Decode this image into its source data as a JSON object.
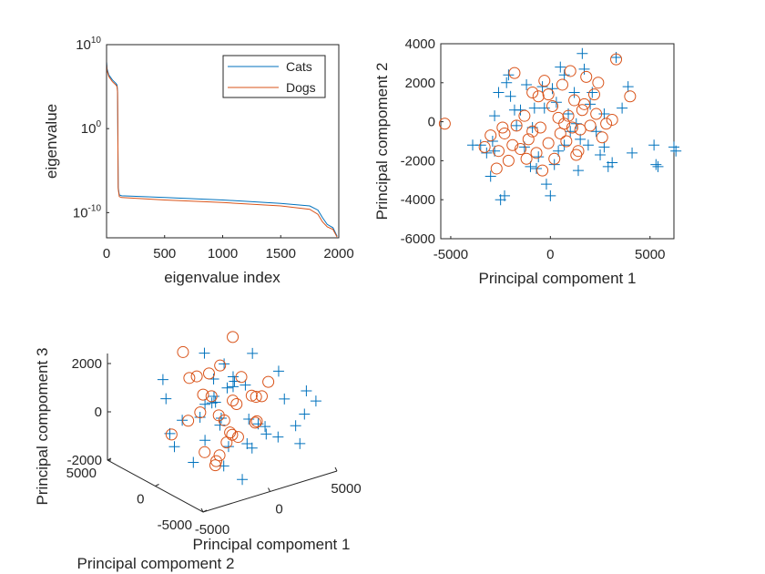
{
  "colors": {
    "cats": "#0072BD",
    "dogs": "#D95319",
    "axis": "#262626",
    "background": "#ffffff"
  },
  "legend": {
    "entries": [
      "Cats",
      "Dogs"
    ],
    "placement": "top-right"
  },
  "chart_data": [
    {
      "type": "line",
      "xlabel": "eigenvalue index",
      "ylabel": "eigenvalue",
      "xlim": [
        0,
        2000
      ],
      "ylim_log10": [
        -13,
        10
      ],
      "yscale": "log",
      "grid": false,
      "x_ticks": [
        "0",
        "500",
        "1000",
        "1500",
        "2000"
      ],
      "y_ticks": [
        {
          "base": "10",
          "exp": "10"
        },
        {
          "base": "10",
          "exp": "0"
        },
        {
          "base": "10",
          "exp": "-10"
        }
      ],
      "series": [
        {
          "name": "Cats",
          "x": [
            1,
            5,
            20,
            50,
            80,
            90,
            95,
            100,
            110,
            130,
            500,
            1000,
            1500,
            1750,
            1820,
            1860,
            1900,
            1950,
            1985
          ],
          "log10_y": [
            7.9,
            7.1,
            6.4,
            5.8,
            5.4,
            5.2,
            4.5,
            -7.0,
            -7.9,
            -8.0,
            -8.2,
            -8.5,
            -8.9,
            -9.2,
            -9.7,
            -10.6,
            -11.4,
            -11.8,
            -12.8
          ]
        },
        {
          "name": "Dogs",
          "x": [
            1,
            5,
            20,
            50,
            80,
            90,
            95,
            100,
            110,
            130,
            500,
            1000,
            1500,
            1750,
            1820,
            1860,
            1900,
            1950,
            1985
          ],
          "log10_y": [
            7.6,
            6.9,
            6.2,
            5.6,
            5.2,
            5.0,
            4.3,
            -7.2,
            -8.1,
            -8.2,
            -8.5,
            -8.8,
            -9.2,
            -9.6,
            -10.2,
            -11.1,
            -11.7,
            -12.0,
            -12.9
          ]
        }
      ]
    },
    {
      "type": "scatter",
      "xlabel": "Principal compoment 1",
      "ylabel": "Principal compoment 2",
      "xlim": [
        -5500,
        6200
      ],
      "ylim": [
        -6000,
        4000
      ],
      "x_ticks": [
        "-5000",
        "0",
        "5000"
      ],
      "y_ticks": [
        "4000",
        "2000",
        "0",
        "-2000",
        "-4000",
        "-6000"
      ],
      "series": [
        {
          "name": "Cats",
          "marker": "+",
          "points": [
            [
              -3500,
              -1200
            ],
            [
              -3200,
              -1600
            ],
            [
              -3000,
              -2800
            ],
            [
              -2900,
              -1000
            ],
            [
              -2500,
              -4000
            ],
            [
              -2300,
              -3800
            ],
            [
              -2800,
              300
            ],
            [
              -2600,
              1500
            ],
            [
              -2200,
              2000
            ],
            [
              -2000,
              1300
            ],
            [
              -1700,
              -200
            ],
            [
              -1500,
              600
            ],
            [
              -1300,
              -1300
            ],
            [
              -1000,
              -2300
            ],
            [
              -800,
              700
            ],
            [
              -600,
              -1800
            ],
            [
              -400,
              1800
            ],
            [
              -200,
              -3200
            ],
            [
              0,
              -3800
            ],
            [
              200,
              -2200
            ],
            [
              300,
              1000
            ],
            [
              500,
              2800
            ],
            [
              700,
              -1200
            ],
            [
              900,
              400
            ],
            [
              1000,
              -500
            ],
            [
              1200,
              1500
            ],
            [
              1400,
              -2500
            ],
            [
              1600,
              3500
            ],
            [
              1700,
              2700
            ],
            [
              1900,
              -1200
            ],
            [
              2100,
              1500
            ],
            [
              2300,
              -500
            ],
            [
              2500,
              -1700
            ],
            [
              2700,
              400
            ],
            [
              2900,
              -2300
            ],
            [
              3100,
              -2100
            ],
            [
              3300,
              3300
            ],
            [
              3600,
              700
            ],
            [
              3900,
              1800
            ],
            [
              4100,
              -1600
            ],
            [
              -3900,
              -1200
            ],
            [
              -2800,
              -1500
            ],
            [
              -1800,
              600
            ],
            [
              -900,
              -300
            ],
            [
              700,
              2400
            ],
            [
              1300,
              -100
            ],
            [
              2000,
              900
            ],
            [
              -300,
              700
            ],
            [
              400,
              -1500
            ],
            [
              1500,
              -900
            ],
            [
              5200,
              -1200
            ],
            [
              5300,
              -2200
            ],
            [
              5400,
              -2300
            ],
            [
              6200,
              -1300
            ],
            [
              6300,
              -1500
            ],
            [
              -2100,
              2400
            ],
            [
              -1200,
              1900
            ],
            [
              -700,
              -2400
            ],
            [
              100,
              1700
            ],
            [
              2700,
              -1300
            ]
          ]
        },
        {
          "name": "Dogs",
          "marker": "o",
          "points": [
            [
              -5300,
              -100
            ],
            [
              -3300,
              -1300
            ],
            [
              -3000,
              -700
            ],
            [
              -2700,
              -2400
            ],
            [
              -2600,
              -1500
            ],
            [
              -2300,
              -600
            ],
            [
              -2100,
              -2000
            ],
            [
              -1900,
              -1200
            ],
            [
              -1700,
              -200
            ],
            [
              -1500,
              -1400
            ],
            [
              -1300,
              300
            ],
            [
              -1100,
              -900
            ],
            [
              -900,
              1500
            ],
            [
              -700,
              -1600
            ],
            [
              -500,
              -300
            ],
            [
              -300,
              2100
            ],
            [
              -100,
              -1100
            ],
            [
              100,
              800
            ],
            [
              200,
              -1900
            ],
            [
              400,
              200
            ],
            [
              600,
              1900
            ],
            [
              800,
              -1000
            ],
            [
              900,
              300
            ],
            [
              1000,
              2600
            ],
            [
              1100,
              -300
            ],
            [
              1200,
              1100
            ],
            [
              1400,
              -1500
            ],
            [
              1500,
              -400
            ],
            [
              1600,
              600
            ],
            [
              1800,
              2300
            ],
            [
              2000,
              -200
            ],
            [
              2200,
              1400
            ],
            [
              2400,
              2000
            ],
            [
              2600,
              -800
            ],
            [
              2800,
              -100
            ],
            [
              3100,
              100
            ],
            [
              3300,
              3200
            ],
            [
              4000,
              1300
            ],
            [
              -1800,
              2500
            ],
            [
              -600,
              1300
            ],
            [
              -2400,
              -300
            ],
            [
              -1200,
              -1900
            ],
            [
              -400,
              -2500
            ],
            [
              500,
              -600
            ],
            [
              1300,
              -1700
            ],
            [
              1700,
              900
            ],
            [
              2300,
              400
            ],
            [
              -100,
              1400
            ],
            [
              700,
              -100
            ],
            [
              -900,
              -500
            ]
          ]
        }
      ]
    },
    {
      "type": "scatter",
      "projection": "3d",
      "xlabel": "Principal compoment 1",
      "ylabel": "Principal compoment 2",
      "zlabel": "Principal compoment 3",
      "xlim": [
        -5000,
        5000
      ],
      "ylim": [
        -5000,
        5000
      ],
      "zlim": [
        -2000,
        2000
      ],
      "x_ticks": [
        "-5000",
        "0",
        "5000"
      ],
      "y_ticks": [
        "-5000",
        "0",
        "5000"
      ],
      "z_ticks": [
        "2000",
        "0",
        "-2000"
      ],
      "series": [
        {
          "name": "Cats",
          "marker": "+",
          "points": [
            [
              -3000,
              2000,
              1300
            ],
            [
              -2500,
              1500,
              -1200
            ],
            [
              -2000,
              -1000,
              800
            ],
            [
              -1800,
              500,
              -1700
            ],
            [
              -1500,
              -2000,
              400
            ],
            [
              -1200,
              2500,
              -600
            ],
            [
              -1000,
              -500,
              1500
            ],
            [
              -800,
              1200,
              -300
            ],
            [
              -600,
              -1500,
              -900
            ],
            [
              -400,
              300,
              600
            ],
            [
              -200,
              -800,
              1100
            ],
            [
              0,
              1800,
              -1400
            ],
            [
              200,
              -2500,
              200
            ],
            [
              400,
              800,
              -700
            ],
            [
              600,
              -300,
              1300
            ],
            [
              800,
              2200,
              -200
            ],
            [
              1000,
              -1200,
              -1100
            ],
            [
              1200,
              400,
              900
            ],
            [
              1400,
              -1800,
              -300
            ],
            [
              1600,
              1100,
              500
            ],
            [
              1800,
              -600,
              -1500
            ],
            [
              2000,
              2600,
              1000
            ],
            [
              2200,
              -1400,
              -600
            ],
            [
              2400,
              200,
              1800
            ],
            [
              2600,
              -2200,
              -900
            ],
            [
              2800,
              1500,
              300
            ],
            [
              3000,
              -400,
              -1200
            ],
            [
              3300,
              -3500,
              -1000
            ],
            [
              4000,
              -3000,
              -100
            ],
            [
              4500,
              -2500,
              600
            ],
            [
              5000,
              -2800,
              200
            ],
            [
              -2200,
              2800,
              300
            ],
            [
              -1600,
              -2400,
              -1300
            ],
            [
              1500,
              2800,
              -400
            ],
            [
              2500,
              -3000,
              700
            ],
            [
              3500,
              -1000,
              1200
            ],
            [
              -500,
              -2800,
              -1900
            ],
            [
              600,
              2700,
              1600
            ],
            [
              -3200,
              1000,
              -500
            ],
            [
              4200,
              -1800,
              -800
            ]
          ]
        },
        {
          "name": "Dogs",
          "marker": "o",
          "points": [
            [
              -2500,
              1800,
              -800
            ],
            [
              -2000,
              -500,
              400
            ],
            [
              -1600,
              1200,
              1300
            ],
            [
              -1300,
              -1200,
              -1400
            ],
            [
              -1000,
              600,
              700
            ],
            [
              -700,
              -1800,
              -300
            ],
            [
              -400,
              2100,
              1000
            ],
            [
              -100,
              -600,
              -1000
            ],
            [
              200,
              1400,
              300
            ],
            [
              500,
              -1300,
              1500
            ],
            [
              800,
              900,
              -600
            ],
            [
              1100,
              -2000,
              800
            ],
            [
              1400,
              300,
              -1200
            ],
            [
              1700,
              -700,
              500
            ],
            [
              2000,
              1700,
              -200
            ],
            [
              2300,
              -1600,
              1100
            ],
            [
              -1900,
              900,
              -200
            ],
            [
              -1200,
              -300,
              1700
            ],
            [
              -600,
              1000,
              -1600
            ],
            [
              0,
              -1500,
              600
            ],
            [
              600,
              -200,
              -900
            ],
            [
              1200,
              1900,
              1200
            ],
            [
              1800,
              -1100,
              -400
            ],
            [
              -900,
              -900,
              200
            ],
            [
              300,
              700,
              -1800
            ],
            [
              -1500,
              2000,
              2100
            ],
            [
              900,
              -2200,
              -100
            ],
            [
              1500,
              1000,
              2400
            ],
            [
              -300,
              300,
              -2000
            ],
            [
              2600,
              -500,
              300
            ]
          ]
        }
      ]
    }
  ]
}
